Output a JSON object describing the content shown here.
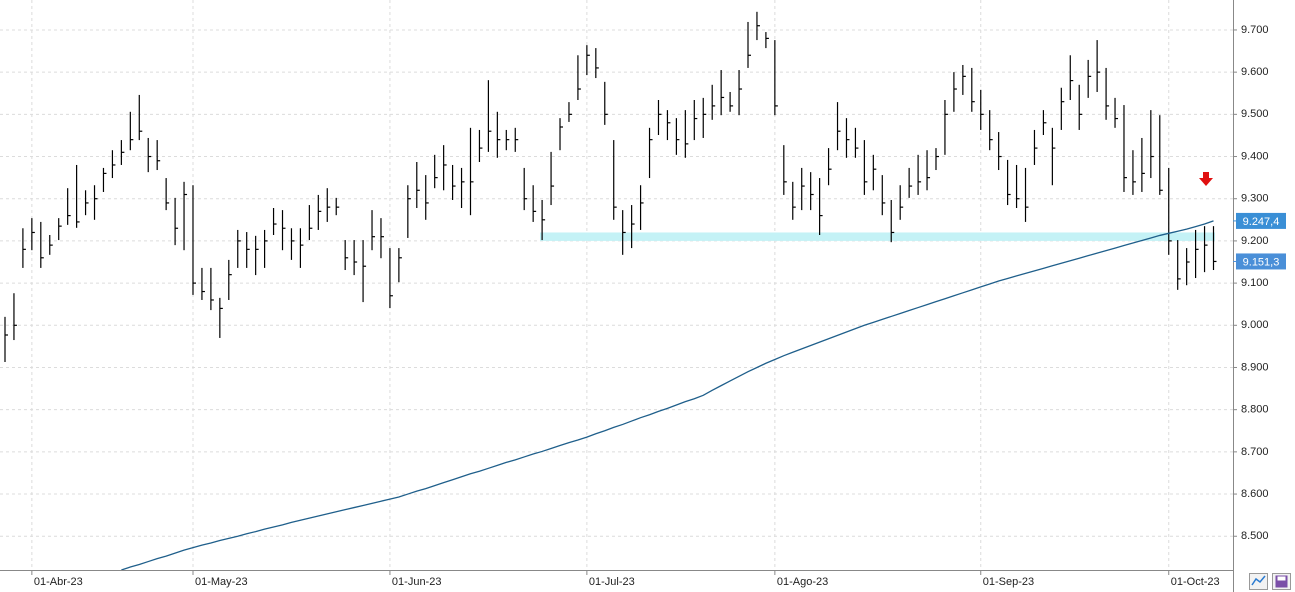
{
  "chart_data": {
    "type": "hlc",
    "categories": [
      null,
      null,
      null,
      "01-Abr-23",
      null,
      null,
      null,
      null,
      null,
      null,
      null,
      null,
      null,
      null,
      null,
      null,
      null,
      null,
      null,
      null,
      null,
      "01-May-23",
      null,
      null,
      null,
      null,
      null,
      null,
      null,
      null,
      null,
      null,
      null,
      null,
      null,
      null,
      null,
      null,
      null,
      null,
      null,
      null,
      null,
      "01-Jun-23",
      null,
      null,
      null,
      null,
      null,
      null,
      null,
      null,
      null,
      null,
      null,
      null,
      null,
      null,
      null,
      null,
      null,
      null,
      null,
      null,
      null,
      "01-Jul-23",
      null,
      null,
      null,
      null,
      null,
      null,
      null,
      null,
      null,
      null,
      null,
      null,
      null,
      null,
      null,
      null,
      null,
      null,
      null,
      null,
      "01-Ago-23",
      null,
      null,
      null,
      null,
      null,
      null,
      null,
      null,
      null,
      null,
      null,
      null,
      null,
      null,
      null,
      null,
      null,
      null,
      null,
      null,
      null,
      null,
      "01-Sep-23",
      null,
      null,
      null,
      null,
      null,
      null,
      null,
      null,
      null,
      null,
      null,
      null,
      null,
      null,
      null,
      null,
      null,
      null,
      null,
      null,
      "01-Oct-23",
      null,
      null,
      null,
      null,
      null
    ],
    "high": [
      9020,
      9076,
      9230,
      9254,
      9245,
      9214,
      9254,
      9325,
      9380,
      9320,
      9332,
      9373,
      9415,
      9439,
      9506,
      9546,
      9444,
      9439,
      9349,
      9302,
      9340,
      9332,
      9136,
      9136,
      9065,
      9155,
      9226,
      9221,
      9212,
      9226,
      9278,
      9273,
      9230,
      9230,
      9285,
      9309,
      9325,
      9302,
      9202,
      9202,
      9202,
      9273,
      9254,
      9183,
      9183,
      9332,
      9387,
      9356,
      9404,
      9427,
      9380,
      9373,
      9468,
      9463,
      9581,
      9506,
      9463,
      9468,
      9373,
      9332,
      9297,
      9411,
      9491,
      9529,
      9640,
      9664,
      9657,
      9577,
      9439,
      9273,
      9285,
      9332,
      9468,
      9534,
      9510,
      9491,
      9510,
      9534,
      9539,
      9570,
      9605,
      9553,
      9605,
      9719,
      9743,
      9695,
      9676,
      9427,
      9340,
      9373,
      9363,
      9349,
      9420,
      9529,
      9491,
      9468,
      9439,
      9404,
      9356,
      9297,
      9332,
      9373,
      9404,
      9415,
      9420,
      9534,
      9600,
      9617,
      9610,
      9558,
      9510,
      9458,
      9392,
      9380,
      9373,
      9463,
      9510,
      9468,
      9563,
      9640,
      9570,
      9629,
      9676,
      9610,
      9539,
      9522,
      9415,
      9444,
      9510,
      9498,
      9373,
      9202,
      9183,
      9226,
      9235,
      9235
    ],
    "low": [
      8913,
      8965,
      9136,
      9178,
      9136,
      9167,
      9202,
      9238,
      9231,
      9261,
      9250,
      9316,
      9349,
      9380,
      9415,
      9439,
      9363,
      9368,
      9273,
      9190,
      9178,
      9072,
      9060,
      9036,
      8970,
      9060,
      9136,
      9136,
      9119,
      9136,
      9214,
      9178,
      9155,
      9136,
      9202,
      9226,
      9245,
      9261,
      9131,
      9119,
      9055,
      9178,
      9159,
      9041,
      9102,
      9207,
      9278,
      9250,
      9325,
      9320,
      9297,
      9278,
      9261,
      9387,
      9411,
      9397,
      9415,
      9411,
      9273,
      9245,
      9202,
      9285,
      9415,
      9482,
      9534,
      9593,
      9586,
      9475,
      9250,
      9167,
      9183,
      9226,
      9349,
      9451,
      9439,
      9404,
      9397,
      9439,
      9444,
      9487,
      9498,
      9506,
      9498,
      9610,
      9676,
      9657,
      9498,
      9309,
      9250,
      9273,
      9273,
      9214,
      9332,
      9415,
      9397,
      9397,
      9309,
      9320,
      9261,
      9197,
      9250,
      9302,
      9309,
      9320,
      9368,
      9404,
      9506,
      9546,
      9506,
      9463,
      9415,
      9368,
      9285,
      9278,
      9245,
      9380,
      9451,
      9332,
      9463,
      9534,
      9463,
      9539,
      9553,
      9487,
      9468,
      9316,
      9309,
      9316,
      9349,
      9309,
      9167,
      9084,
      9095,
      9112,
      9126,
      9131
    ],
    "close": [
      8977,
      9000,
      9180,
      9220,
      9160,
      9190,
      9235,
      9260,
      9245,
      9290,
      9300,
      9360,
      9380,
      9410,
      9440,
      9460,
      9400,
      9390,
      9290,
      9230,
      9310,
      9100,
      9080,
      9060,
      9040,
      9120,
      9200,
      9180,
      9180,
      9200,
      9240,
      9230,
      9200,
      9190,
      9230,
      9270,
      9280,
      9280,
      9160,
      9150,
      9140,
      9210,
      9210,
      9070,
      9160,
      9300,
      9320,
      9290,
      9350,
      9380,
      9330,
      9340,
      9340,
      9420,
      9460,
      9440,
      9440,
      9440,
      9300,
      9270,
      9250,
      9330,
      9470,
      9500,
      9560,
      9640,
      9610,
      9500,
      9280,
      9220,
      9240,
      9290,
      9440,
      9500,
      9480,
      9440,
      9430,
      9490,
      9500,
      9520,
      9540,
      9520,
      9560,
      9640,
      9710,
      9680,
      9520,
      9340,
      9280,
      9330,
      9310,
      9260,
      9370,
      9460,
      9440,
      9420,
      9340,
      9370,
      9290,
      9220,
      9280,
      9330,
      9340,
      9350,
      9400,
      9500,
      9560,
      9590,
      9530,
      9500,
      9440,
      9400,
      9310,
      9300,
      9280,
      9420,
      9480,
      9420,
      9530,
      9580,
      9500,
      9590,
      9600,
      9520,
      9490,
      9350,
      9340,
      9360,
      9400,
      9320,
      9200,
      9110,
      9150,
      9180,
      9190,
      9151.3
    ],
    "close_labels": [
      null,
      null,
      null,
      null,
      null,
      null,
      null,
      null,
      null,
      null,
      null,
      null,
      null,
      null,
      null,
      null,
      null,
      null,
      null,
      null,
      null,
      null,
      null,
      null,
      null,
      null,
      null,
      null,
      null,
      null,
      null,
      null,
      null,
      null,
      null,
      null,
      null,
      null,
      null,
      null,
      null,
      null,
      null,
      null,
      null,
      null,
      null,
      null,
      null,
      null,
      null,
      null,
      null,
      null,
      null,
      null,
      null,
      null,
      null,
      null,
      null,
      null,
      null,
      null,
      null,
      null,
      null,
      null,
      null,
      null,
      null,
      null,
      null,
      null,
      null,
      null,
      null,
      null,
      null,
      null,
      null,
      null,
      null,
      null,
      null,
      null,
      null,
      null,
      null,
      null,
      null,
      null,
      null,
      null,
      null,
      null,
      null,
      null,
      null,
      null,
      null,
      null,
      null,
      null,
      null,
      null,
      null,
      null,
      null,
      null,
      null,
      null,
      null,
      null,
      null,
      null,
      null,
      null,
      null,
      null,
      null,
      null,
      null,
      null,
      null,
      null,
      null,
      null,
      null,
      null,
      null,
      null,
      null,
      null,
      null,
      "9.151,3"
    ],
    "bar_color": "#000000",
    "ma": {
      "color": "#1f5f8b",
      "values": [
        null,
        null,
        null,
        null,
        null,
        null,
        null,
        null,
        null,
        null,
        null,
        null,
        null,
        8420,
        8427,
        8433,
        8440,
        8447,
        8453,
        8460,
        8467,
        8473,
        8479,
        8484,
        8490,
        8495,
        8500,
        8506,
        8511,
        8517,
        8522,
        8527,
        8533,
        8538,
        8543,
        8548,
        8553,
        8558,
        8563,
        8568,
        8573,
        8578,
        8583,
        8588,
        8593,
        8600,
        8607,
        8613,
        8620,
        8627,
        8634,
        8641,
        8648,
        8654,
        8661,
        8668,
        8675,
        8681,
        8688,
        8695,
        8701,
        8708,
        8715,
        8722,
        8728,
        8735,
        8743,
        8750,
        8758,
        8765,
        8773,
        8781,
        8788,
        8796,
        8803,
        8811,
        8819,
        8826,
        8834,
        8846,
        8857,
        8868,
        8879,
        8890,
        8900,
        8910,
        8919,
        8928,
        8936,
        8944,
        8952,
        8960,
        8968,
        8976,
        8984,
        8992,
        9000,
        9007,
        9014,
        9021,
        9028,
        9035,
        9042,
        9049,
        9056,
        9063,
        9070,
        9077,
        9084,
        9091,
        9098,
        9105,
        9111,
        9117,
        9123,
        9129,
        9135,
        9141,
        9147,
        9153,
        9159,
        9165,
        9171,
        9177,
        9183,
        9189,
        9195,
        9201,
        9207,
        9213,
        9218,
        9223,
        9228,
        9234,
        9240,
        9247.4
      ],
      "value_labels": [
        null,
        null,
        null,
        null,
        null,
        null,
        null,
        null,
        null,
        null,
        null,
        null,
        null,
        null,
        null,
        null,
        null,
        null,
        null,
        null,
        null,
        null,
        null,
        null,
        null,
        null,
        null,
        null,
        null,
        null,
        null,
        null,
        null,
        null,
        null,
        null,
        null,
        null,
        null,
        null,
        null,
        null,
        null,
        null,
        null,
        null,
        null,
        null,
        null,
        null,
        null,
        null,
        null,
        null,
        null,
        null,
        null,
        null,
        null,
        null,
        null,
        null,
        null,
        null,
        null,
        null,
        null,
        null,
        null,
        null,
        null,
        null,
        null,
        null,
        null,
        null,
        null,
        null,
        null,
        null,
        null,
        null,
        null,
        null,
        null,
        null,
        null,
        null,
        null,
        null,
        null,
        null,
        null,
        null,
        null,
        null,
        null,
        null,
        null,
        null,
        null,
        null,
        null,
        null,
        null,
        null,
        null,
        null,
        null,
        null,
        null,
        null,
        null,
        null,
        null,
        null,
        null,
        null,
        null,
        null,
        null,
        null,
        null,
        null,
        null,
        null,
        null,
        null,
        null,
        null,
        null,
        null,
        null,
        null,
        null,
        "9.247,4"
      ]
    },
    "support": [
      9200,
      9220
    ],
    "support_color": "#c4f2f6",
    "ylim": [
      8420,
      9771
    ],
    "yticks": [
      {
        "value": 8500,
        "label": "8.500"
      },
      {
        "value": 8600,
        "label": "8.600"
      },
      {
        "value": 8700,
        "label": "8.700"
      },
      {
        "value": 8800,
        "label": "8.800"
      },
      {
        "value": 8900,
        "label": "8.900"
      },
      {
        "value": 9000,
        "label": "9.000"
      },
      {
        "value": 9100,
        "label": "9.100"
      },
      {
        "value": 9200,
        "label": "9.200"
      },
      {
        "value": 9300,
        "label": "9.300"
      },
      {
        "value": 9400,
        "label": "9.400"
      },
      {
        "value": 9500,
        "label": "9.500"
      },
      {
        "value": 9600,
        "label": "9.600"
      },
      {
        "value": 9700,
        "label": "9.700"
      }
    ],
    "grid": true
  }
}
